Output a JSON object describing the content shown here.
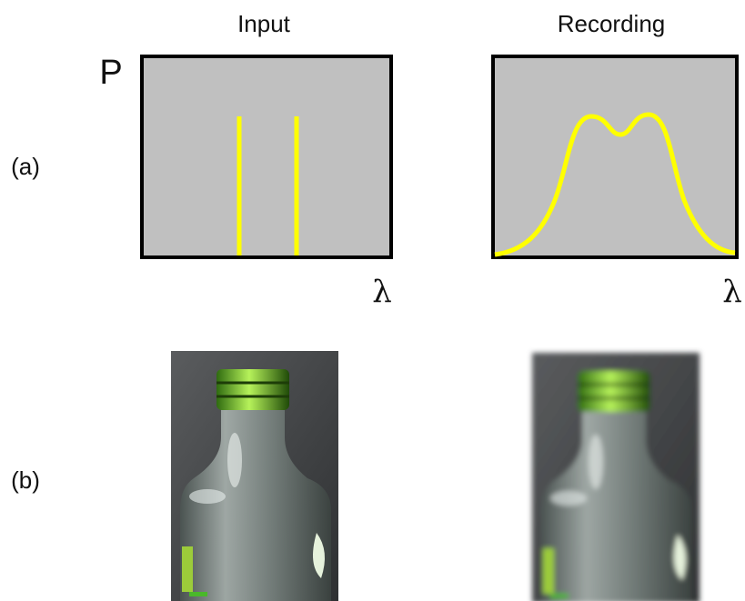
{
  "columns": [
    "Input",
    "Recording"
  ],
  "rows": [
    "(a)",
    "(b)"
  ],
  "axes": {
    "y_label": "P",
    "x_label": "λ"
  }
}
